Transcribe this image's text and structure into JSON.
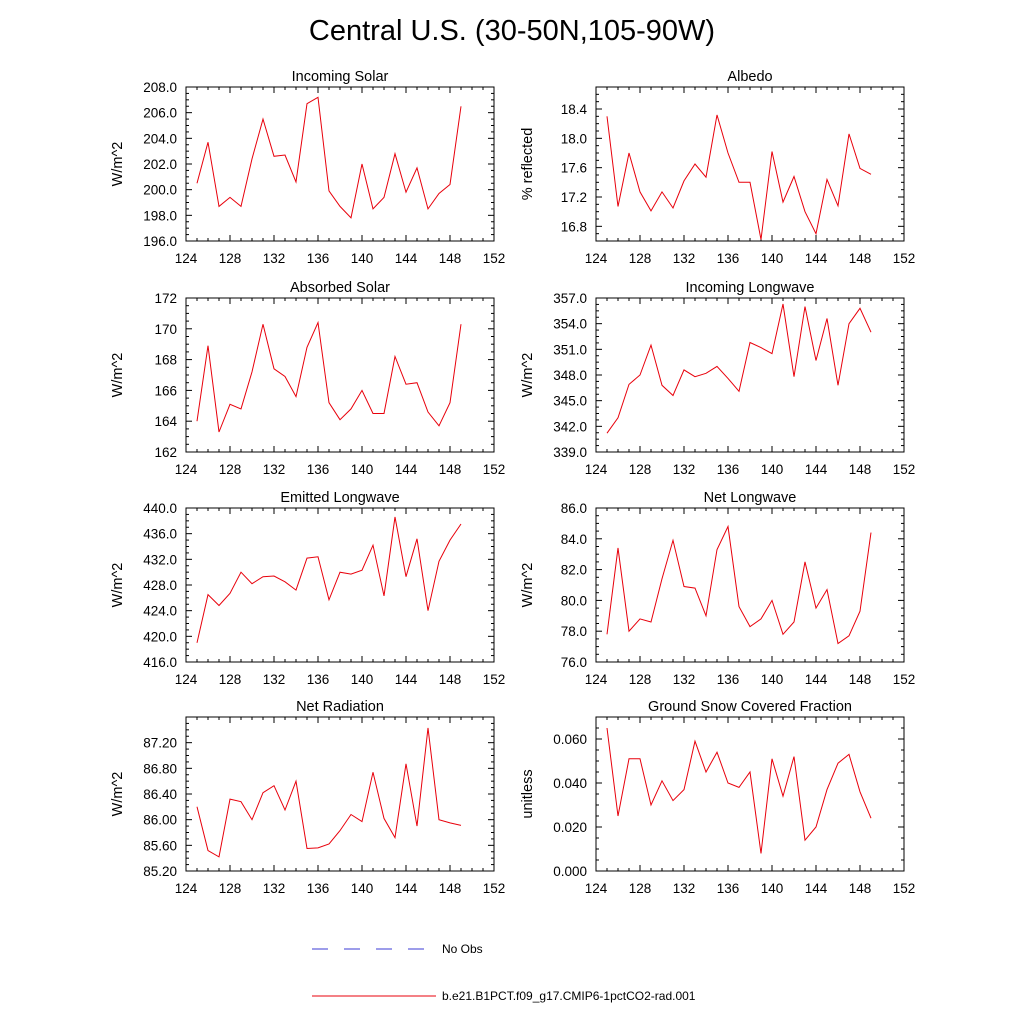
{
  "title": "Central U.S. (30-50N,105-90W)",
  "colors": {
    "series": "#e8000b",
    "no_obs": "#3b3bd6",
    "axes": "#000000"
  },
  "legend": {
    "no_obs_label": "No Obs",
    "model_label": "b.e21.B1PCT.f09_g17.CMIP6-1pctCO2-rad.001"
  },
  "chart_data": [
    {
      "type": "line",
      "title": "Incoming Solar",
      "ylabel": "W/m^2",
      "xlim": [
        124,
        152
      ],
      "ylim": [
        196,
        208
      ],
      "xticks": [
        "124",
        "128",
        "132",
        "136",
        "140",
        "144",
        "148",
        "152"
      ],
      "yticks": [
        "196.0",
        "198.0",
        "200.0",
        "202.0",
        "204.0",
        "206.0",
        "208.0"
      ],
      "x": [
        125,
        126,
        127,
        128,
        129,
        130,
        131,
        132,
        133,
        134,
        135,
        136,
        137,
        138,
        139,
        140,
        141,
        142,
        143,
        144,
        145,
        146,
        147,
        148,
        149
      ],
      "series": [
        {
          "values": [
            200.5,
            203.7,
            198.7,
            199.4,
            198.7,
            202.4,
            205.5,
            202.6,
            202.7,
            200.6,
            206.7,
            207.2,
            199.9,
            198.7,
            197.8,
            202.0,
            198.5,
            199.4,
            202.8,
            199.8,
            201.7,
            198.5,
            199.7,
            200.4,
            206.5
          ]
        }
      ]
    },
    {
      "type": "line",
      "title": "Albedo",
      "ylabel": "% reflected",
      "xlim": [
        124,
        152
      ],
      "ylim": [
        16.6,
        18.7
      ],
      "xticks": [
        "124",
        "128",
        "132",
        "136",
        "140",
        "144",
        "148",
        "152"
      ],
      "yticks": [
        "16.8",
        "17.2",
        "17.6",
        "18.0",
        "18.4"
      ],
      "x": [
        125,
        126,
        127,
        128,
        129,
        130,
        131,
        132,
        133,
        134,
        135,
        136,
        137,
        138,
        139,
        140,
        141,
        142,
        143,
        144,
        145,
        146,
        147,
        148,
        149
      ],
      "series": [
        {
          "values": [
            18.3,
            17.07,
            17.8,
            17.27,
            17.01,
            17.27,
            17.05,
            17.42,
            17.65,
            17.47,
            18.32,
            17.8,
            17.4,
            17.4,
            16.62,
            17.82,
            17.13,
            17.48,
            17.0,
            16.7,
            17.44,
            17.08,
            18.06,
            17.59,
            17.51
          ]
        }
      ]
    },
    {
      "type": "line",
      "title": "Absorbed Solar",
      "ylabel": "W/m^2",
      "xlim": [
        124,
        152
      ],
      "ylim": [
        162,
        172
      ],
      "xticks": [
        "124",
        "128",
        "132",
        "136",
        "140",
        "144",
        "148",
        "152"
      ],
      "yticks": [
        "162",
        "164",
        "166",
        "168",
        "170",
        "172"
      ],
      "x": [
        125,
        126,
        127,
        128,
        129,
        130,
        131,
        132,
        133,
        134,
        135,
        136,
        137,
        138,
        139,
        140,
        141,
        142,
        143,
        144,
        145,
        146,
        147,
        148,
        149
      ],
      "series": [
        {
          "values": [
            164.0,
            168.9,
            163.3,
            165.1,
            164.8,
            167.2,
            170.3,
            167.4,
            166.9,
            165.6,
            168.8,
            170.4,
            165.2,
            164.1,
            164.8,
            166.0,
            164.5,
            164.5,
            168.2,
            166.4,
            166.5,
            164.6,
            163.7,
            165.2,
            170.3
          ]
        }
      ]
    },
    {
      "type": "line",
      "title": "Incoming Longwave",
      "ylabel": "W/m^2",
      "xlim": [
        124,
        152
      ],
      "ylim": [
        339,
        357
      ],
      "xticks": [
        "124",
        "128",
        "132",
        "136",
        "140",
        "144",
        "148",
        "152"
      ],
      "yticks": [
        "339.0",
        "342.0",
        "345.0",
        "348.0",
        "351.0",
        "354.0",
        "357.0"
      ],
      "x": [
        125,
        126,
        127,
        128,
        129,
        130,
        131,
        132,
        133,
        134,
        135,
        136,
        137,
        138,
        139,
        140,
        141,
        142,
        143,
        144,
        145,
        146,
        147,
        148,
        149
      ],
      "series": [
        {
          "values": [
            341.2,
            343.0,
            346.9,
            348.0,
            351.5,
            346.8,
            345.6,
            348.6,
            347.8,
            348.2,
            349.0,
            347.6,
            346.1,
            351.8,
            351.2,
            350.5,
            356.3,
            347.8,
            356.0,
            349.7,
            354.6,
            346.8,
            354.0,
            355.8,
            353.0
          ]
        }
      ]
    },
    {
      "type": "line",
      "title": "Emitted Longwave",
      "ylabel": "W/m^2",
      "xlim": [
        124,
        152
      ],
      "ylim": [
        416,
        440
      ],
      "xticks": [
        "124",
        "128",
        "132",
        "136",
        "140",
        "144",
        "148",
        "152"
      ],
      "yticks": [
        "416.0",
        "420.0",
        "424.0",
        "428.0",
        "432.0",
        "436.0",
        "440.0"
      ],
      "x": [
        125,
        126,
        127,
        128,
        129,
        130,
        131,
        132,
        133,
        134,
        135,
        136,
        137,
        138,
        139,
        140,
        141,
        142,
        143,
        144,
        145,
        146,
        147,
        148,
        149
      ],
      "series": [
        {
          "values": [
            419.0,
            426.5,
            424.8,
            426.7,
            430.0,
            428.2,
            429.3,
            429.4,
            428.5,
            427.2,
            432.2,
            432.4,
            425.7,
            430.0,
            429.7,
            430.3,
            434.2,
            426.3,
            438.6,
            429.3,
            435.2,
            424.0,
            431.7,
            435.0,
            437.5
          ]
        }
      ]
    },
    {
      "type": "line",
      "title": "Net Longwave",
      "ylabel": "W/m^2",
      "xlim": [
        124,
        152
      ],
      "ylim": [
        76,
        86
      ],
      "xticks": [
        "124",
        "128",
        "132",
        "136",
        "140",
        "144",
        "148",
        "152"
      ],
      "yticks": [
        "76.0",
        "78.0",
        "80.0",
        "82.0",
        "84.0",
        "86.0"
      ],
      "x": [
        125,
        126,
        127,
        128,
        129,
        130,
        131,
        132,
        133,
        134,
        135,
        136,
        137,
        138,
        139,
        140,
        141,
        142,
        143,
        144,
        145,
        146,
        147,
        148,
        149
      ],
      "series": [
        {
          "values": [
            77.8,
            83.4,
            78.0,
            78.8,
            78.6,
            81.4,
            83.9,
            80.9,
            80.8,
            79.0,
            83.3,
            84.8,
            79.6,
            78.3,
            78.8,
            80.0,
            77.8,
            78.6,
            82.5,
            79.5,
            80.7,
            77.2,
            77.7,
            79.3,
            84.4
          ]
        }
      ]
    },
    {
      "type": "line",
      "title": "Net Radiation",
      "ylabel": "W/m^2",
      "xlim": [
        124,
        152
      ],
      "ylim": [
        85.2,
        87.6
      ],
      "xticks": [
        "124",
        "128",
        "132",
        "136",
        "140",
        "144",
        "148",
        "152"
      ],
      "yticks": [
        "85.20",
        "85.60",
        "86.00",
        "86.40",
        "86.80",
        "87.20"
      ],
      "x": [
        125,
        126,
        127,
        128,
        129,
        130,
        131,
        132,
        133,
        134,
        135,
        136,
        137,
        138,
        139,
        140,
        141,
        142,
        143,
        144,
        145,
        146,
        147,
        148,
        149
      ],
      "series": [
        {
          "values": [
            86.2,
            85.52,
            85.42,
            86.32,
            86.28,
            86.0,
            86.42,
            86.53,
            86.15,
            86.6,
            85.55,
            85.56,
            85.62,
            85.83,
            86.08,
            85.97,
            86.74,
            86.02,
            85.72,
            86.87,
            85.9,
            87.43,
            86.0,
            85.95,
            85.91
          ]
        }
      ]
    },
    {
      "type": "line",
      "title": "Ground Snow Covered Fraction",
      "ylabel": "unitless",
      "xlim": [
        124,
        152
      ],
      "ylim": [
        0.0,
        0.07
      ],
      "xticks": [
        "124",
        "128",
        "132",
        "136",
        "140",
        "144",
        "148",
        "152"
      ],
      "yticks": [
        "0.000",
        "0.020",
        "0.040",
        "0.060"
      ],
      "x": [
        125,
        126,
        127,
        128,
        129,
        130,
        131,
        132,
        133,
        134,
        135,
        136,
        137,
        138,
        139,
        140,
        141,
        142,
        143,
        144,
        145,
        146,
        147,
        148,
        149
      ],
      "series": [
        {
          "values": [
            0.065,
            0.025,
            0.051,
            0.051,
            0.03,
            0.041,
            0.032,
            0.037,
            0.059,
            0.045,
            0.054,
            0.04,
            0.038,
            0.045,
            0.008,
            0.051,
            0.034,
            0.052,
            0.014,
            0.02,
            0.037,
            0.049,
            0.053,
            0.036,
            0.024
          ]
        }
      ]
    }
  ]
}
